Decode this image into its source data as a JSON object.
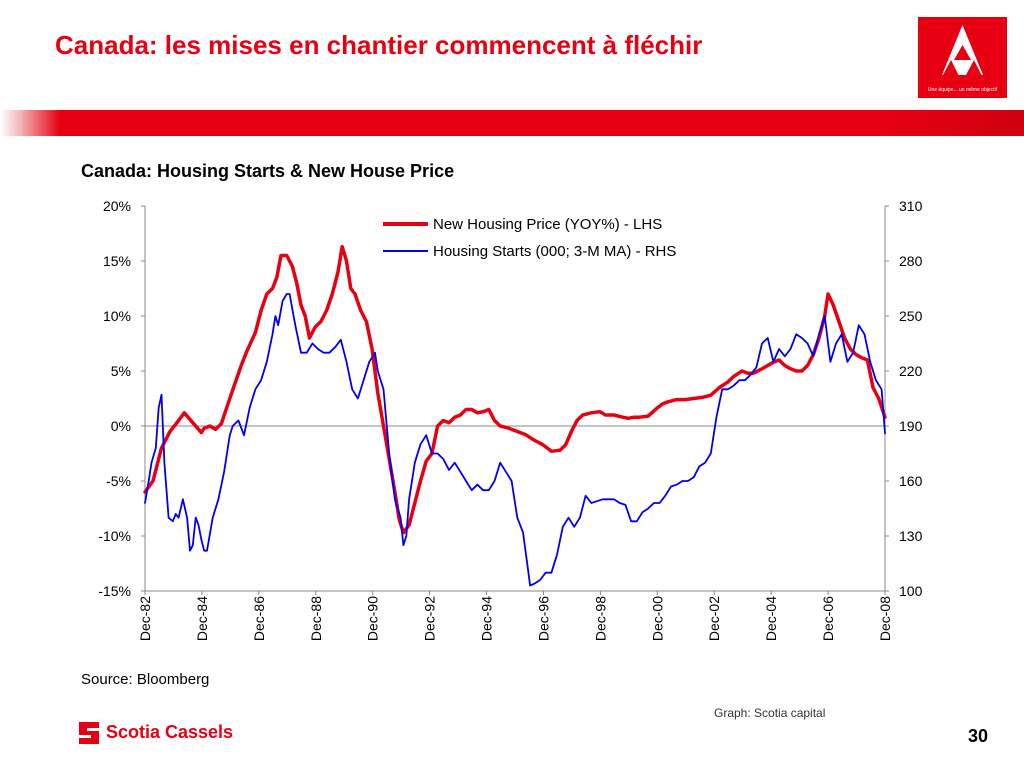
{
  "slide": {
    "title": "Canada: les mises en chantier commencent à fléchir",
    "logo_tagline": "Une équipe... un même objectif",
    "source": "Source: Bloomberg",
    "graph_credit": "Graph: Scotia capital",
    "company_name": "Scotia Cassels",
    "page_number": "30",
    "accent_color": "#e60012"
  },
  "chart_data": {
    "type": "line",
    "title": "Canada: Housing Starts & New House Price",
    "x_tick_labels": [
      "Dec-82",
      "Dec-84",
      "Dec-86",
      "Dec-88",
      "Dec-90",
      "Dec-92",
      "Dec-94",
      "Dec-96",
      "Dec-98",
      "Dec-00",
      "Dec-02",
      "Dec-04",
      "Dec-06",
      "Dec-08"
    ],
    "x_range": [
      1982.92,
      2008.92
    ],
    "left_axis": {
      "ylim": [
        -15,
        20
      ],
      "tick_labels": [
        "20%",
        "15%",
        "10%",
        "5%",
        "0%",
        "-5%",
        "-10%",
        "-15%"
      ]
    },
    "right_axis": {
      "ylim": [
        100,
        310
      ],
      "tick_labels": [
        "310",
        "280",
        "250",
        "220",
        "190",
        "160",
        "130",
        "100"
      ]
    },
    "grid": false,
    "legend": "top-center",
    "series": [
      {
        "name": "New Housing Price (YOY%) - LHS",
        "axis": "left",
        "color": "#e60012",
        "points": [
          [
            1982.92,
            -6.0
          ],
          [
            1983.2,
            -5.0
          ],
          [
            1983.5,
            -2.0
          ],
          [
            1983.8,
            -0.5
          ],
          [
            1984.1,
            0.5
          ],
          [
            1984.3,
            1.2
          ],
          [
            1984.6,
            0.3
          ],
          [
            1984.9,
            -0.6
          ],
          [
            1985.0,
            -0.2
          ],
          [
            1985.2,
            0.0
          ],
          [
            1985.4,
            -0.3
          ],
          [
            1985.6,
            0.2
          ],
          [
            1985.9,
            2.5
          ],
          [
            1986.1,
            4.0
          ],
          [
            1986.3,
            5.5
          ],
          [
            1986.5,
            6.8
          ],
          [
            1986.8,
            8.5
          ],
          [
            1987.0,
            10.5
          ],
          [
            1987.2,
            12.0
          ],
          [
            1987.4,
            12.5
          ],
          [
            1987.55,
            13.5
          ],
          [
            1987.7,
            15.5
          ],
          [
            1987.9,
            15.5
          ],
          [
            1988.1,
            14.5
          ],
          [
            1988.25,
            13.0
          ],
          [
            1988.4,
            11.0
          ],
          [
            1988.55,
            10.0
          ],
          [
            1988.7,
            8.0
          ],
          [
            1988.9,
            9.0
          ],
          [
            1989.1,
            9.5
          ],
          [
            1989.3,
            10.5
          ],
          [
            1989.5,
            12.0
          ],
          [
            1989.7,
            14.0
          ],
          [
            1989.85,
            16.3
          ],
          [
            1990.0,
            15.0
          ],
          [
            1990.15,
            12.5
          ],
          [
            1990.3,
            12.0
          ],
          [
            1990.5,
            10.5
          ],
          [
            1990.7,
            9.5
          ],
          [
            1990.9,
            7.0
          ],
          [
            1991.1,
            3.0
          ],
          [
            1991.3,
            0.0
          ],
          [
            1991.5,
            -3.0
          ],
          [
            1991.7,
            -6.0
          ],
          [
            1991.85,
            -8.5
          ],
          [
            1992.0,
            -9.7
          ],
          [
            1992.2,
            -9.0
          ],
          [
            1992.4,
            -7.0
          ],
          [
            1992.6,
            -5.0
          ],
          [
            1992.8,
            -3.2
          ],
          [
            1993.0,
            -2.5
          ],
          [
            1993.2,
            0.0
          ],
          [
            1993.4,
            0.5
          ],
          [
            1993.6,
            0.3
          ],
          [
            1993.8,
            0.8
          ],
          [
            1994.0,
            1.0
          ],
          [
            1994.2,
            1.5
          ],
          [
            1994.4,
            1.5
          ],
          [
            1994.6,
            1.2
          ],
          [
            1994.8,
            1.3
          ],
          [
            1995.0,
            1.5
          ],
          [
            1995.2,
            0.5
          ],
          [
            1995.4,
            0.0
          ],
          [
            1995.7,
            -0.2
          ],
          [
            1996.0,
            -0.5
          ],
          [
            1996.3,
            -0.8
          ],
          [
            1996.6,
            -1.3
          ],
          [
            1996.9,
            -1.7
          ],
          [
            1997.2,
            -2.3
          ],
          [
            1997.5,
            -2.2
          ],
          [
            1997.7,
            -1.7
          ],
          [
            1997.9,
            -0.5
          ],
          [
            1998.1,
            0.5
          ],
          [
            1998.3,
            1.0
          ],
          [
            1998.6,
            1.2
          ],
          [
            1998.9,
            1.3
          ],
          [
            1999.1,
            1.0
          ],
          [
            1999.4,
            1.0
          ],
          [
            1999.7,
            0.8
          ],
          [
            1999.9,
            0.7
          ],
          [
            2000.1,
            0.8
          ],
          [
            2000.3,
            0.8
          ],
          [
            2000.6,
            0.9
          ],
          [
            2000.9,
            1.6
          ],
          [
            2001.1,
            2.0
          ],
          [
            2001.3,
            2.2
          ],
          [
            2001.6,
            2.4
          ],
          [
            2001.9,
            2.4
          ],
          [
            2002.2,
            2.5
          ],
          [
            2002.5,
            2.6
          ],
          [
            2002.8,
            2.8
          ],
          [
            2003.1,
            3.5
          ],
          [
            2003.4,
            4.0
          ],
          [
            2003.6,
            4.5
          ],
          [
            2003.9,
            5.0
          ],
          [
            2004.1,
            4.8
          ],
          [
            2004.3,
            4.8
          ],
          [
            2004.6,
            5.2
          ],
          [
            2004.8,
            5.5
          ],
          [
            2005.0,
            5.8
          ],
          [
            2005.2,
            6.0
          ],
          [
            2005.4,
            5.5
          ],
          [
            2005.6,
            5.2
          ],
          [
            2005.8,
            5.0
          ],
          [
            2006.0,
            5.0
          ],
          [
            2006.2,
            5.5
          ],
          [
            2006.4,
            6.5
          ],
          [
            2006.6,
            8.0
          ],
          [
            2006.8,
            10.0
          ],
          [
            2006.92,
            12.0
          ],
          [
            2007.1,
            11.0
          ],
          [
            2007.3,
            9.5
          ],
          [
            2007.5,
            8.0
          ],
          [
            2007.7,
            7.0
          ],
          [
            2007.9,
            6.5
          ],
          [
            2008.1,
            6.2
          ],
          [
            2008.3,
            6.0
          ],
          [
            2008.5,
            3.5
          ],
          [
            2008.7,
            2.5
          ],
          [
            2008.92,
            0.8
          ]
        ]
      },
      {
        "name": "Housing Starts (000; 3-M MA) - RHS",
        "axis": "right",
        "color": "#0000ee",
        "points": [
          [
            1982.92,
            148
          ],
          [
            1983.05,
            160
          ],
          [
            1983.15,
            170
          ],
          [
            1983.3,
            178
          ],
          [
            1983.4,
            200
          ],
          [
            1983.5,
            207
          ],
          [
            1983.6,
            170
          ],
          [
            1983.75,
            140
          ],
          [
            1983.9,
            138
          ],
          [
            1984.0,
            142
          ],
          [
            1984.1,
            140
          ],
          [
            1984.25,
            150
          ],
          [
            1984.4,
            140
          ],
          [
            1984.5,
            122
          ],
          [
            1984.6,
            125
          ],
          [
            1984.7,
            140
          ],
          [
            1984.8,
            136
          ],
          [
            1984.9,
            128
          ],
          [
            1985.0,
            122
          ],
          [
            1985.1,
            122
          ],
          [
            1985.3,
            140
          ],
          [
            1985.5,
            150
          ],
          [
            1985.7,
            165
          ],
          [
            1985.9,
            185
          ],
          [
            1986.0,
            190
          ],
          [
            1986.2,
            193
          ],
          [
            1986.4,
            185
          ],
          [
            1986.6,
            200
          ],
          [
            1986.8,
            210
          ],
          [
            1987.0,
            215
          ],
          [
            1987.2,
            225
          ],
          [
            1987.4,
            240
          ],
          [
            1987.5,
            250
          ],
          [
            1987.6,
            245
          ],
          [
            1987.75,
            258
          ],
          [
            1987.9,
            262
          ],
          [
            1988.0,
            262
          ],
          [
            1988.2,
            245
          ],
          [
            1988.4,
            230
          ],
          [
            1988.6,
            230
          ],
          [
            1988.8,
            235
          ],
          [
            1989.0,
            232
          ],
          [
            1989.2,
            230
          ],
          [
            1989.4,
            230
          ],
          [
            1989.6,
            233
          ],
          [
            1989.8,
            237
          ],
          [
            1990.0,
            225
          ],
          [
            1990.2,
            210
          ],
          [
            1990.4,
            205
          ],
          [
            1990.6,
            215
          ],
          [
            1990.8,
            225
          ],
          [
            1991.0,
            230
          ],
          [
            1991.1,
            220
          ],
          [
            1991.3,
            210
          ],
          [
            1991.5,
            175
          ],
          [
            1991.7,
            150
          ],
          [
            1991.9,
            140
          ],
          [
            1992.0,
            125
          ],
          [
            1992.1,
            130
          ],
          [
            1992.2,
            150
          ],
          [
            1992.4,
            170
          ],
          [
            1992.6,
            180
          ],
          [
            1992.8,
            185
          ],
          [
            1993.0,
            175
          ],
          [
            1993.2,
            175
          ],
          [
            1993.4,
            172
          ],
          [
            1993.6,
            166
          ],
          [
            1993.8,
            170
          ],
          [
            1994.0,
            165
          ],
          [
            1994.2,
            160
          ],
          [
            1994.4,
            155
          ],
          [
            1994.6,
            158
          ],
          [
            1994.8,
            155
          ],
          [
            1995.0,
            155
          ],
          [
            1995.2,
            160
          ],
          [
            1995.4,
            170
          ],
          [
            1995.6,
            165
          ],
          [
            1995.8,
            160
          ],
          [
            1996.0,
            140
          ],
          [
            1996.2,
            132
          ],
          [
            1996.35,
            115
          ],
          [
            1996.45,
            103
          ],
          [
            1996.6,
            104
          ],
          [
            1996.8,
            106
          ],
          [
            1997.0,
            110
          ],
          [
            1997.2,
            110
          ],
          [
            1997.4,
            120
          ],
          [
            1997.6,
            135
          ],
          [
            1997.8,
            140
          ],
          [
            1998.0,
            135
          ],
          [
            1998.2,
            140
          ],
          [
            1998.4,
            152
          ],
          [
            1998.6,
            148
          ],
          [
            1998.8,
            149
          ],
          [
            1999.0,
            150
          ],
          [
            1999.2,
            150
          ],
          [
            1999.4,
            150
          ],
          [
            1999.6,
            148
          ],
          [
            1999.8,
            147
          ],
          [
            2000.0,
            138
          ],
          [
            2000.2,
            138
          ],
          [
            2000.4,
            143
          ],
          [
            2000.6,
            145
          ],
          [
            2000.8,
            148
          ],
          [
            2001.0,
            148
          ],
          [
            2001.2,
            152
          ],
          [
            2001.4,
            157
          ],
          [
            2001.6,
            158
          ],
          [
            2001.8,
            160
          ],
          [
            2002.0,
            160
          ],
          [
            2002.2,
            162
          ],
          [
            2002.4,
            168
          ],
          [
            2002.6,
            170
          ],
          [
            2002.8,
            175
          ],
          [
            2003.0,
            195
          ],
          [
            2003.2,
            210
          ],
          [
            2003.4,
            210
          ],
          [
            2003.6,
            212
          ],
          [
            2003.8,
            215
          ],
          [
            2004.0,
            215
          ],
          [
            2004.2,
            218
          ],
          [
            2004.4,
            222
          ],
          [
            2004.6,
            235
          ],
          [
            2004.8,
            238
          ],
          [
            2005.0,
            225
          ],
          [
            2005.2,
            232
          ],
          [
            2005.4,
            228
          ],
          [
            2005.6,
            232
          ],
          [
            2005.8,
            240
          ],
          [
            2006.0,
            238
          ],
          [
            2006.2,
            235
          ],
          [
            2006.4,
            228
          ],
          [
            2006.6,
            240
          ],
          [
            2006.8,
            250
          ],
          [
            2007.0,
            225
          ],
          [
            2007.2,
            235
          ],
          [
            2007.4,
            240
          ],
          [
            2007.6,
            225
          ],
          [
            2007.8,
            230
          ],
          [
            2008.0,
            245
          ],
          [
            2008.2,
            240
          ],
          [
            2008.4,
            225
          ],
          [
            2008.6,
            215
          ],
          [
            2008.8,
            210
          ],
          [
            2008.92,
            186
          ]
        ]
      }
    ]
  }
}
